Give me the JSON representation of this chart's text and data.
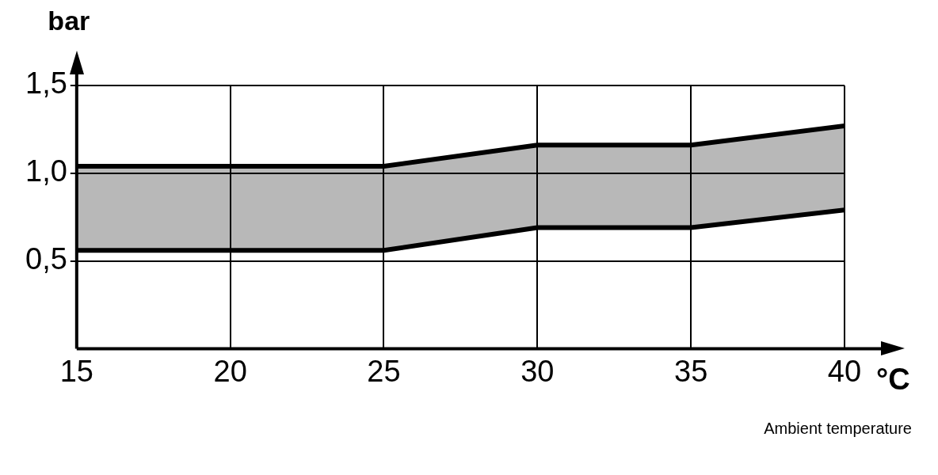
{
  "chart_data": {
    "type": "line",
    "xlabel": "°C",
    "ylabel": "bar",
    "annotations": [
      "Ambient temperature"
    ],
    "x": [
      15,
      20,
      25,
      30,
      35,
      40
    ],
    "series": [
      {
        "type": "line",
        "color": "#000000",
        "values": [
          0.56,
          0.56,
          0.56,
          0.69,
          0.69,
          0.79
        ]
      },
      {
        "type": "area",
        "color": "#000000",
        "values": [
          1.04,
          1.04,
          1.04,
          1.16,
          1.16,
          1.27
        ]
      }
    ],
    "xlim": [
      15,
      40
    ],
    "xticks": [
      15,
      20,
      25,
      30,
      35,
      40
    ],
    "ylim": [
      0,
      1.5
    ],
    "yticks": [
      {
        "value": 0.5,
        "label": "0,5"
      },
      {
        "value": 1.0,
        "label": "1,0"
      },
      {
        "value": 1.5,
        "label": "1,5"
      }
    ],
    "grid": true,
    "legend": false,
    "marker": "none",
    "line_style": "solid"
  }
}
